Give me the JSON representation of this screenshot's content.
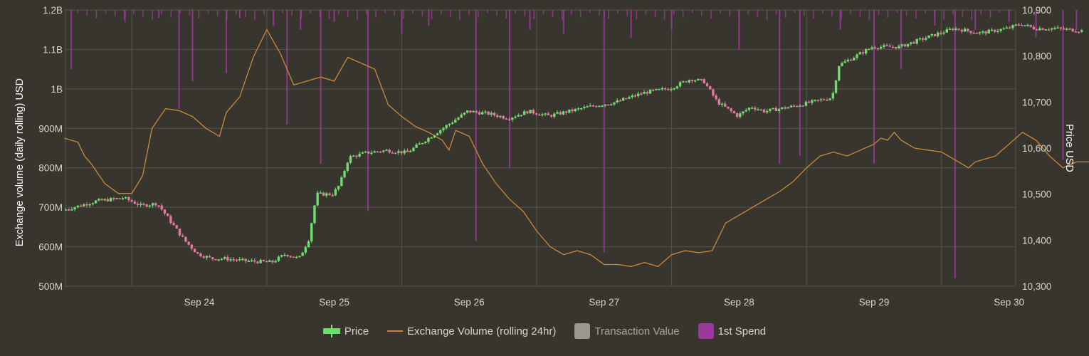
{
  "chart_data": {
    "type": "candlestick-line-bar",
    "x_ticks": [
      "Sep 24",
      "Sep 25",
      "Sep 26",
      "Sep 27",
      "Sep 28",
      "Sep 29",
      "Sep 30"
    ],
    "left_axis": {
      "title": "Exchange volume (daily rolling) USD",
      "ticks": [
        "500M",
        "600M",
        "700M",
        "800M",
        "900M",
        "1B",
        "1.1B",
        "1.2B"
      ],
      "range": [
        500000000,
        1200000000
      ]
    },
    "right_axis": {
      "title": "Price USD",
      "ticks": [
        "10,300",
        "10,400",
        "10,500",
        "10,600",
        "10,700",
        "10,800",
        "10,900"
      ],
      "range": [
        10300,
        10900
      ]
    },
    "x_range_days": [
      -1.0,
      5.95
    ],
    "price_series": {
      "name": "Price",
      "up_color": "#6fdc6f",
      "down_color": "#e07aa0",
      "anchors_days_price": [
        [
          -1.0,
          10465
        ],
        [
          -0.75,
          10485
        ],
        [
          -0.6,
          10490
        ],
        [
          -0.55,
          10492
        ],
        [
          -0.42,
          10475
        ],
        [
          -0.3,
          10480
        ],
        [
          -0.2,
          10440
        ],
        [
          -0.1,
          10400
        ],
        [
          0.0,
          10370
        ],
        [
          0.1,
          10360
        ],
        [
          0.2,
          10360
        ],
        [
          0.35,
          10355
        ],
        [
          0.55,
          10352
        ],
        [
          0.65,
          10370
        ],
        [
          0.75,
          10360
        ],
        [
          0.82,
          10400
        ],
        [
          0.88,
          10500
        ],
        [
          0.95,
          10500
        ],
        [
          1.0,
          10500
        ],
        [
          1.05,
          10520
        ],
        [
          1.12,
          10580
        ],
        [
          1.25,
          10590
        ],
        [
          1.4,
          10595
        ],
        [
          1.55,
          10590
        ],
        [
          1.7,
          10620
        ],
        [
          1.85,
          10650
        ],
        [
          2.0,
          10680
        ],
        [
          2.15,
          10675
        ],
        [
          2.3,
          10665
        ],
        [
          2.45,
          10680
        ],
        [
          2.6,
          10670
        ],
        [
          2.75,
          10680
        ],
        [
          2.9,
          10690
        ],
        [
          3.1,
          10700
        ],
        [
          3.3,
          10720
        ],
        [
          3.5,
          10730
        ],
        [
          3.65,
          10750
        ],
        [
          3.75,
          10745
        ],
        [
          3.85,
          10700
        ],
        [
          4.0,
          10670
        ],
        [
          4.1,
          10690
        ],
        [
          4.2,
          10680
        ],
        [
          4.4,
          10690
        ],
        [
          4.55,
          10700
        ],
        [
          4.7,
          10710
        ],
        [
          4.75,
          10780
        ],
        [
          5.0,
          10820
        ],
        [
          5.2,
          10820
        ],
        [
          5.4,
          10840
        ],
        [
          5.6,
          10860
        ],
        [
          5.8,
          10850
        ],
        [
          6.0,
          10860
        ],
        [
          6.1,
          10870
        ],
        [
          6.2,
          10860
        ],
        [
          6.35,
          10860
        ],
        [
          6.55,
          10855
        ]
      ],
      "candles": 340
    },
    "volume_series": {
      "name": "Exchange Volume (rolling 24hr)",
      "color": "#c88a38",
      "points_days_volume": [
        [
          -1.0,
          875000000
        ],
        [
          -0.95,
          870000000
        ],
        [
          -0.9,
          865000000
        ],
        [
          -0.85,
          830000000
        ],
        [
          -0.8,
          810000000
        ],
        [
          -0.7,
          760000000
        ],
        [
          -0.6,
          735000000
        ],
        [
          -0.5,
          735000000
        ],
        [
          -0.42,
          780000000
        ],
        [
          -0.35,
          900000000
        ],
        [
          -0.25,
          950000000
        ],
        [
          -0.15,
          945000000
        ],
        [
          -0.05,
          930000000
        ],
        [
          0.05,
          900000000
        ],
        [
          0.15,
          880000000
        ],
        [
          0.2,
          940000000
        ],
        [
          0.3,
          980000000
        ],
        [
          0.4,
          1080000000
        ],
        [
          0.5,
          1150000000
        ],
        [
          0.6,
          1090000000
        ],
        [
          0.7,
          1010000000
        ],
        [
          0.8,
          1020000000
        ],
        [
          0.9,
          1030000000
        ],
        [
          1.0,
          1020000000
        ],
        [
          1.1,
          1080000000
        ],
        [
          1.2,
          1065000000
        ],
        [
          1.3,
          1050000000
        ],
        [
          1.4,
          960000000
        ],
        [
          1.5,
          930000000
        ],
        [
          1.6,
          905000000
        ],
        [
          1.7,
          890000000
        ],
        [
          1.8,
          870000000
        ],
        [
          1.85,
          845000000
        ],
        [
          1.9,
          895000000
        ],
        [
          2.0,
          880000000
        ],
        [
          2.1,
          810000000
        ],
        [
          2.2,
          760000000
        ],
        [
          2.3,
          720000000
        ],
        [
          2.4,
          690000000
        ],
        [
          2.5,
          640000000
        ],
        [
          2.6,
          600000000
        ],
        [
          2.7,
          580000000
        ],
        [
          2.8,
          590000000
        ],
        [
          2.9,
          580000000
        ],
        [
          3.0,
          555000000
        ],
        [
          3.1,
          555000000
        ],
        [
          3.2,
          550000000
        ],
        [
          3.3,
          560000000
        ],
        [
          3.4,
          550000000
        ],
        [
          3.5,
          580000000
        ],
        [
          3.6,
          590000000
        ],
        [
          3.7,
          585000000
        ],
        [
          3.8,
          590000000
        ],
        [
          3.9,
          660000000
        ],
        [
          4.0,
          680000000
        ],
        [
          4.1,
          700000000
        ],
        [
          4.2,
          720000000
        ],
        [
          4.3,
          740000000
        ],
        [
          4.4,
          765000000
        ],
        [
          4.5,
          800000000
        ],
        [
          4.6,
          830000000
        ],
        [
          4.7,
          840000000
        ],
        [
          4.8,
          830000000
        ],
        [
          4.9,
          845000000
        ],
        [
          5.0,
          860000000
        ],
        [
          5.05,
          875000000
        ],
        [
          5.1,
          870000000
        ],
        [
          5.15,
          890000000
        ],
        [
          5.2,
          870000000
        ],
        [
          5.3,
          850000000
        ],
        [
          5.4,
          845000000
        ],
        [
          5.5,
          840000000
        ],
        [
          5.6,
          820000000
        ],
        [
          5.7,
          800000000
        ],
        [
          5.75,
          815000000
        ],
        [
          5.8,
          820000000
        ],
        [
          5.9,
          830000000
        ],
        [
          6.0,
          860000000
        ],
        [
          6.1,
          890000000
        ],
        [
          6.2,
          870000000
        ],
        [
          6.3,
          830000000
        ],
        [
          6.4,
          800000000
        ],
        [
          6.5,
          815000000
        ],
        [
          6.6,
          815000000
        ]
      ]
    },
    "transaction_value": {
      "name": "Transaction Value",
      "color": "#9a9791",
      "enabled": false
    },
    "first_spend": {
      "name": "1st Spend",
      "color": "#9b3a9b",
      "bars_days_volume": [
        [
          -0.95,
          1050000000
        ],
        [
          -0.55,
          1170000000
        ],
        [
          -0.3,
          1180000000
        ],
        [
          -0.15,
          950000000
        ],
        [
          -0.05,
          1020000000
        ],
        [
          0.2,
          1040000000
        ],
        [
          0.3,
          1180000000
        ],
        [
          0.55,
          1160000000
        ],
        [
          0.65,
          910000000
        ],
        [
          0.75,
          1150000000
        ],
        [
          0.9,
          810000000
        ],
        [
          1.0,
          1170000000
        ],
        [
          1.25,
          690000000
        ],
        [
          1.5,
          1140000000
        ],
        [
          1.7,
          1160000000
        ],
        [
          2.05,
          615000000
        ],
        [
          2.3,
          800000000
        ],
        [
          2.45,
          1150000000
        ],
        [
          2.7,
          1140000000
        ],
        [
          3.0,
          585000000
        ],
        [
          3.2,
          1130000000
        ],
        [
          3.5,
          1150000000
        ],
        [
          4.0,
          1100000000
        ],
        [
          4.3,
          810000000
        ],
        [
          4.45,
          830000000
        ],
        [
          4.75,
          1150000000
        ],
        [
          5.0,
          810000000
        ],
        [
          5.2,
          1050000000
        ],
        [
          5.45,
          1160000000
        ],
        [
          5.6,
          520000000
        ],
        [
          5.75,
          1150000000
        ],
        [
          6.0,
          1170000000
        ],
        [
          6.2,
          1130000000
        ],
        [
          6.4,
          820000000
        ],
        [
          6.5,
          1150000000
        ],
        [
          6.6,
          550000000
        ]
      ]
    },
    "legend": [
      "Price",
      "Exchange Volume (rolling 24hr)",
      "Transaction Value",
      "1st Spend"
    ],
    "grid": true
  },
  "legend": {
    "price": "Price",
    "volume": "Exchange Volume (rolling 24hr)",
    "transaction": "Transaction Value",
    "first_spend": "1st Spend"
  }
}
